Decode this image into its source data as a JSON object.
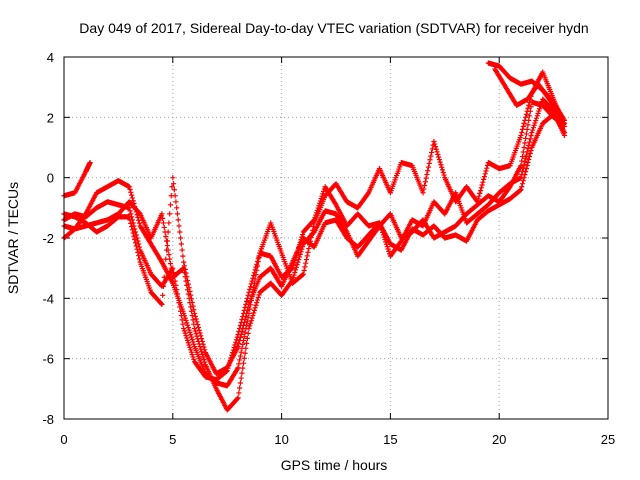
{
  "chart_data": {
    "type": "scatter",
    "title": "Day 049 of 2017, Sidereal Day-to-day VTEC variation (SDTVAR) for receiver hydn",
    "xlabel": "GPS time / hours",
    "ylabel": "SDTVAR / TECUs",
    "xlim": [
      0,
      25
    ],
    "ylim": [
      -8,
      4
    ],
    "xticks": [
      "0",
      "5",
      "10",
      "15",
      "20",
      "25"
    ],
    "yticks": [
      "-8",
      "-6",
      "-4",
      "-2",
      "0",
      "2",
      "4"
    ],
    "grid": true,
    "marker_color": "#ff0000",
    "series": [
      {
        "points": [
          [
            0,
            -0.6
          ],
          [
            0.5,
            -0.5
          ],
          [
            1.0,
            0.2
          ],
          [
            1.2,
            0.5
          ]
        ]
      },
      {
        "points": [
          [
            0,
            -2.0
          ],
          [
            0.5,
            -1.7
          ],
          [
            1,
            -1.2
          ],
          [
            1.5,
            -0.5
          ],
          [
            2,
            -0.3
          ],
          [
            2.5,
            -0.1
          ],
          [
            3,
            -0.3
          ],
          [
            3.5,
            -1.6
          ],
          [
            4,
            -2.2
          ],
          [
            4.5,
            -2.8
          ],
          [
            5,
            -3.5
          ],
          [
            5.5,
            -4.5
          ],
          [
            6,
            -5.6
          ],
          [
            6.5,
            -6.5
          ],
          [
            7,
            -6.8
          ],
          [
            7.5,
            -6.9
          ],
          [
            8,
            -6.3
          ],
          [
            8.5,
            -4.5
          ],
          [
            9,
            -2.5
          ],
          [
            9.5,
            -1.5
          ],
          [
            10,
            -2.5
          ],
          [
            10.5,
            -3.5
          ],
          [
            11,
            -3.2
          ],
          [
            11.5,
            -1.5
          ],
          [
            12,
            -0.6
          ],
          [
            12.5,
            -0.2
          ],
          [
            13,
            -0.8
          ],
          [
            13.5,
            -1.0
          ],
          [
            14,
            -0.5
          ],
          [
            14.5,
            0.3
          ],
          [
            15,
            -0.5
          ],
          [
            15.5,
            0.5
          ],
          [
            16,
            0.4
          ],
          [
            16.5,
            -0.5
          ],
          [
            17,
            1.2
          ],
          [
            17.5,
            0.0
          ],
          [
            18,
            -0.8
          ],
          [
            18.5,
            -0.3
          ],
          [
            19,
            -0.8
          ],
          [
            19.5,
            0.5
          ],
          [
            20,
            0.3
          ],
          [
            20.5,
            0.4
          ],
          [
            21,
            1.4
          ],
          [
            21.5,
            2.8
          ],
          [
            22,
            3.5
          ],
          [
            22.5,
            2.6
          ],
          [
            23,
            1.7
          ]
        ]
      },
      {
        "points": [
          [
            0,
            -1.4
          ],
          [
            0.5,
            -1.2
          ],
          [
            1,
            -1.3
          ],
          [
            1.5,
            -1.0
          ],
          [
            2,
            -0.8
          ],
          [
            2.5,
            -0.9
          ],
          [
            3,
            -1.0
          ],
          [
            3.5,
            -2.4
          ],
          [
            4,
            -3.2
          ],
          [
            4.5,
            -3.6
          ],
          [
            5,
            -3.0
          ],
          [
            5.5,
            -5.0
          ],
          [
            6,
            -6.1
          ],
          [
            6.5,
            -6.6
          ],
          [
            7,
            -6.7
          ],
          [
            7.5,
            -6.4
          ],
          [
            8,
            -5.2
          ],
          [
            8.5,
            -3.8
          ],
          [
            9,
            -2.5
          ],
          [
            9.5,
            -2.6
          ],
          [
            10,
            -3.3
          ],
          [
            10.5,
            -3.0
          ],
          [
            11,
            -1.8
          ],
          [
            11.5,
            -1.4
          ],
          [
            12,
            -0.3
          ],
          [
            12.5,
            -0.9
          ],
          [
            13,
            -1.6
          ],
          [
            13.5,
            -1.2
          ],
          [
            14,
            -1.6
          ],
          [
            14.5,
            -1.5
          ],
          [
            15,
            -2.6
          ],
          [
            15.5,
            -2.1
          ],
          [
            16,
            -1.4
          ],
          [
            16.5,
            -1.6
          ],
          [
            17,
            -0.8
          ],
          [
            17.5,
            -1.2
          ],
          [
            18,
            -0.5
          ],
          [
            18.5,
            -1.5
          ],
          [
            19,
            -1.2
          ],
          [
            19.5,
            -0.9
          ],
          [
            20,
            -0.5
          ],
          [
            20.5,
            -0.2
          ],
          [
            21,
            0.0
          ],
          [
            21.5,
            1.5
          ],
          [
            22,
            2.6
          ],
          [
            22.5,
            2.2
          ],
          [
            23,
            1.4
          ]
        ]
      },
      {
        "points": [
          [
            0,
            -1.6
          ],
          [
            0.5,
            -1.7
          ],
          [
            1,
            -1.6
          ],
          [
            1.5,
            -1.5
          ],
          [
            2,
            -1.4
          ],
          [
            2.5,
            -1.2
          ],
          [
            3,
            -0.8
          ],
          [
            3.5,
            -1.2
          ],
          [
            4,
            -2.0
          ],
          [
            4.5,
            -1.2
          ],
          [
            5,
            -3.3
          ],
          [
            5.5,
            -3.0
          ],
          [
            6,
            -5.0
          ],
          [
            6.5,
            -6.2
          ],
          [
            7,
            -7.0
          ],
          [
            7.5,
            -7.7
          ],
          [
            8,
            -7.3
          ],
          [
            8.5,
            -5.0
          ],
          [
            9,
            -3.8
          ],
          [
            9.5,
            -3.5
          ],
          [
            10,
            -3.9
          ],
          [
            10.5,
            -3.4
          ],
          [
            11,
            -2.2
          ],
          [
            11.5,
            -1.8
          ],
          [
            12,
            -1.1
          ],
          [
            12.5,
            -1.2
          ],
          [
            13,
            -1.8
          ],
          [
            13.5,
            -2.6
          ],
          [
            14,
            -2.1
          ],
          [
            14.5,
            -1.6
          ],
          [
            15,
            -1.2
          ],
          [
            15.5,
            -2.0
          ],
          [
            16,
            -1.8
          ],
          [
            16.5,
            -1.4
          ],
          [
            17,
            -2.0
          ],
          [
            17.5,
            -1.8
          ],
          [
            18,
            -1.6
          ],
          [
            18.5,
            -1.2
          ],
          [
            19,
            -0.9
          ],
          [
            19.5,
            -0.6
          ],
          [
            20,
            -0.8
          ],
          [
            20.5,
            -0.3
          ],
          [
            21,
            0.4
          ],
          [
            21.5,
            2.5
          ],
          [
            22,
            2.4
          ],
          [
            22.5,
            2.0
          ],
          [
            23,
            1.8
          ]
        ]
      },
      {
        "points": [
          [
            0,
            -1.2
          ],
          [
            0.5,
            -1.3
          ],
          [
            1,
            -1.5
          ],
          [
            1.5,
            -1.8
          ],
          [
            2,
            -1.6
          ],
          [
            2.5,
            -1.3
          ],
          [
            3,
            -1.3
          ],
          [
            3.5,
            -2.8
          ],
          [
            4,
            -3.8
          ],
          [
            4.5,
            -4.2
          ],
          [
            5,
            0.0
          ],
          [
            5.5,
            -2.8
          ],
          [
            6,
            -4.5
          ],
          [
            6.5,
            -5.8
          ],
          [
            7,
            -6.5
          ],
          [
            7.5,
            -6.3
          ],
          [
            8,
            -5.6
          ],
          [
            8.5,
            -4.2
          ],
          [
            9,
            -3.3
          ],
          [
            9.5,
            -3.0
          ],
          [
            10,
            -3.6
          ],
          [
            10.5,
            -2.8
          ],
          [
            11,
            -2.0
          ],
          [
            11.5,
            -2.3
          ],
          [
            12,
            -1.5
          ],
          [
            12.5,
            -1.4
          ],
          [
            13,
            -2.0
          ],
          [
            13.5,
            -2.3
          ],
          [
            14,
            -1.9
          ],
          [
            14.5,
            -1.5
          ],
          [
            15,
            -2.2
          ],
          [
            15.5,
            -2.4
          ],
          [
            16,
            -1.7
          ],
          [
            16.5,
            -1.9
          ],
          [
            17,
            -1.6
          ],
          [
            17.5,
            -2.0
          ],
          [
            18,
            -1.9
          ],
          [
            18.5,
            -2.1
          ],
          [
            19,
            -1.4
          ],
          [
            19.5,
            -1.1
          ],
          [
            20,
            -0.9
          ],
          [
            20.5,
            -0.7
          ],
          [
            21,
            -0.4
          ],
          [
            21.5,
            1.0
          ],
          [
            22,
            1.8
          ],
          [
            22.5,
            2.1
          ],
          [
            23,
            1.5
          ]
        ]
      },
      {
        "points": [
          [
            19.5,
            3.8
          ],
          [
            20,
            3.7
          ],
          [
            20.5,
            3.3
          ],
          [
            21,
            3.1
          ],
          [
            21.5,
            3.2
          ],
          [
            22,
            2.9
          ],
          [
            22.5,
            2.5
          ],
          [
            23,
            1.9
          ]
        ]
      },
      {
        "points": [
          [
            19.8,
            3.6
          ],
          [
            20.3,
            3.0
          ],
          [
            20.8,
            2.4
          ],
          [
            21.3,
            2.6
          ],
          [
            21.8,
            3.1
          ],
          [
            22.3,
            2.6
          ],
          [
            22.8,
            2.0
          ]
        ]
      }
    ]
  }
}
